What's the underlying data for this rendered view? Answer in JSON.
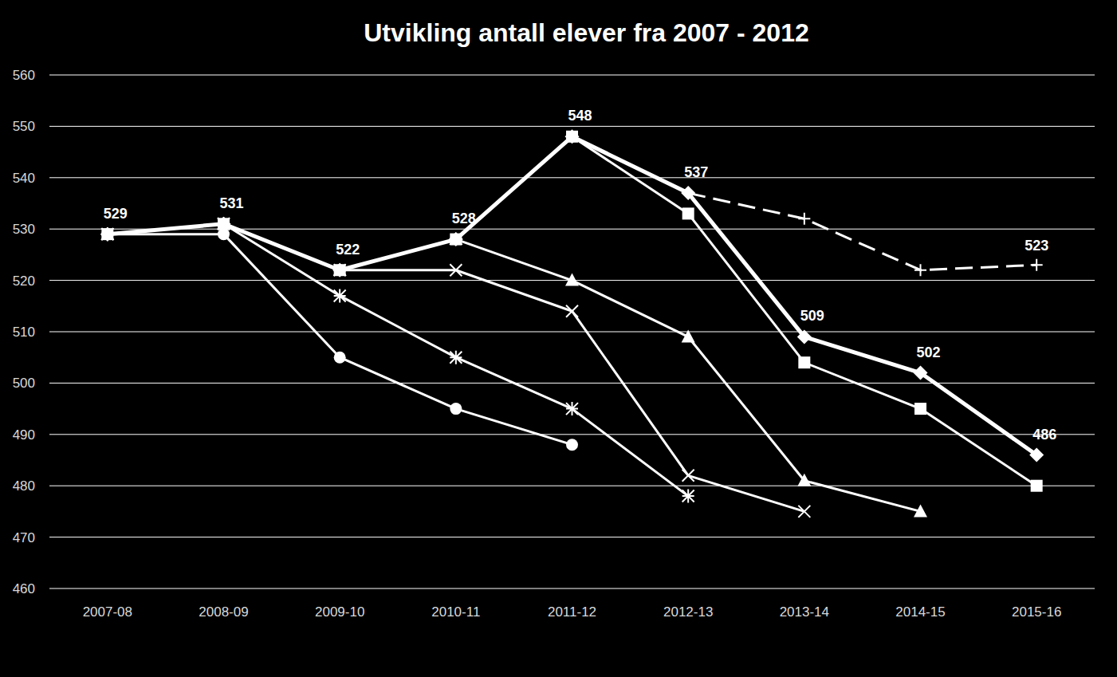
{
  "chart_data": {
    "type": "line",
    "title": "Utvikling antall elever fra 2007 - 2012",
    "categories": [
      "2007-08",
      "2008-09",
      "2009-10",
      "2010-11",
      "2011-12",
      "2012-13",
      "2013-14",
      "2014-15",
      "2015-16"
    ],
    "series": [
      {
        "color": "#ffffff",
        "marker": "plus",
        "line_style": "dashed",
        "values": [
          null,
          null,
          null,
          null,
          null,
          537,
          532,
          522,
          523
        ],
        "value_labels": [
          null,
          null,
          null,
          null,
          null,
          null,
          null,
          null,
          "523"
        ]
      },
      {
        "color": "#ffffff",
        "marker": "circle",
        "line_style": "solid",
        "values": [
          529,
          529,
          505,
          495,
          488,
          null,
          null,
          null,
          null
        ]
      },
      {
        "color": "#ffffff",
        "marker": "asterisk",
        "line_style": "solid",
        "values": [
          529,
          531,
          517,
          505,
          495,
          478,
          null,
          null,
          null
        ]
      },
      {
        "color": "#ffffff",
        "marker": "x",
        "line_style": "solid",
        "values": [
          529,
          531,
          522,
          522,
          514,
          482,
          475,
          null,
          null
        ]
      },
      {
        "color": "#ffffff",
        "marker": "triangle",
        "line_style": "solid",
        "values": [
          529,
          531,
          522,
          528,
          520,
          509,
          481,
          475,
          null
        ]
      },
      {
        "color": "#ffffff",
        "marker": "square",
        "line_style": "solid",
        "values": [
          529,
          531,
          522,
          528,
          548,
          533,
          504,
          495,
          480
        ]
      },
      {
        "color": "#ffffff",
        "marker": "diamond",
        "line_style": "solid",
        "data_labels": true,
        "values": [
          529,
          531,
          522,
          528,
          548,
          537,
          509,
          502,
          486
        ]
      }
    ],
    "ylim": [
      460,
      560
    ],
    "yticks": [
      460,
      470,
      480,
      490,
      500,
      510,
      520,
      530,
      540,
      550,
      560
    ],
    "grid": true
  }
}
